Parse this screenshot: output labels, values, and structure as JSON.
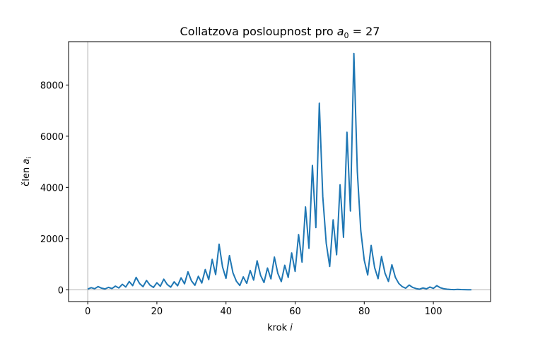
{
  "chart_data": {
    "type": "line",
    "title": {
      "text": "Collatzova posloupnost pro ",
      "var": "a",
      "sub": "0",
      "suffix": " = 27"
    },
    "xlabel": {
      "text": "krok ",
      "var": "i"
    },
    "ylabel": {
      "text": "člen ",
      "var": "a",
      "sub": "i"
    },
    "xlim": [
      -5.55,
      116.55
    ],
    "ylim": [
      -461.6,
      9693.6
    ],
    "xticks": [
      0,
      20,
      40,
      60,
      80,
      100
    ],
    "yticks": [
      0,
      2000,
      4000,
      6000,
      8000
    ],
    "grid": false,
    "reference_lines": {
      "x": 0,
      "y": 0,
      "color": "#b0b0b0"
    },
    "series": [
      {
        "color": "#1f77b4",
        "values": [
          27,
          82,
          41,
          124,
          62,
          31,
          94,
          47,
          142,
          71,
          214,
          107,
          322,
          161,
          484,
          242,
          121,
          364,
          182,
          91,
          274,
          137,
          412,
          206,
          103,
          310,
          155,
          466,
          233,
          700,
          350,
          175,
          526,
          263,
          790,
          395,
          1186,
          593,
          1780,
          890,
          445,
          1336,
          668,
          334,
          167,
          502,
          251,
          754,
          377,
          1132,
          566,
          283,
          850,
          425,
          1276,
          638,
          319,
          958,
          479,
          1438,
          719,
          2158,
          1079,
          3238,
          1619,
          4858,
          2429,
          7288,
          3644,
          1822,
          911,
          2734,
          1367,
          4102,
          2051,
          6154,
          3077,
          9232,
          4616,
          2308,
          1154,
          577,
          1732,
          866,
          433,
          1300,
          650,
          325,
          976,
          488,
          244,
          122,
          61,
          184,
          92,
          46,
          23,
          70,
          35,
          106,
          53,
          160,
          80,
          40,
          20,
          10,
          5,
          16,
          8,
          4,
          2,
          1
        ]
      }
    ]
  }
}
